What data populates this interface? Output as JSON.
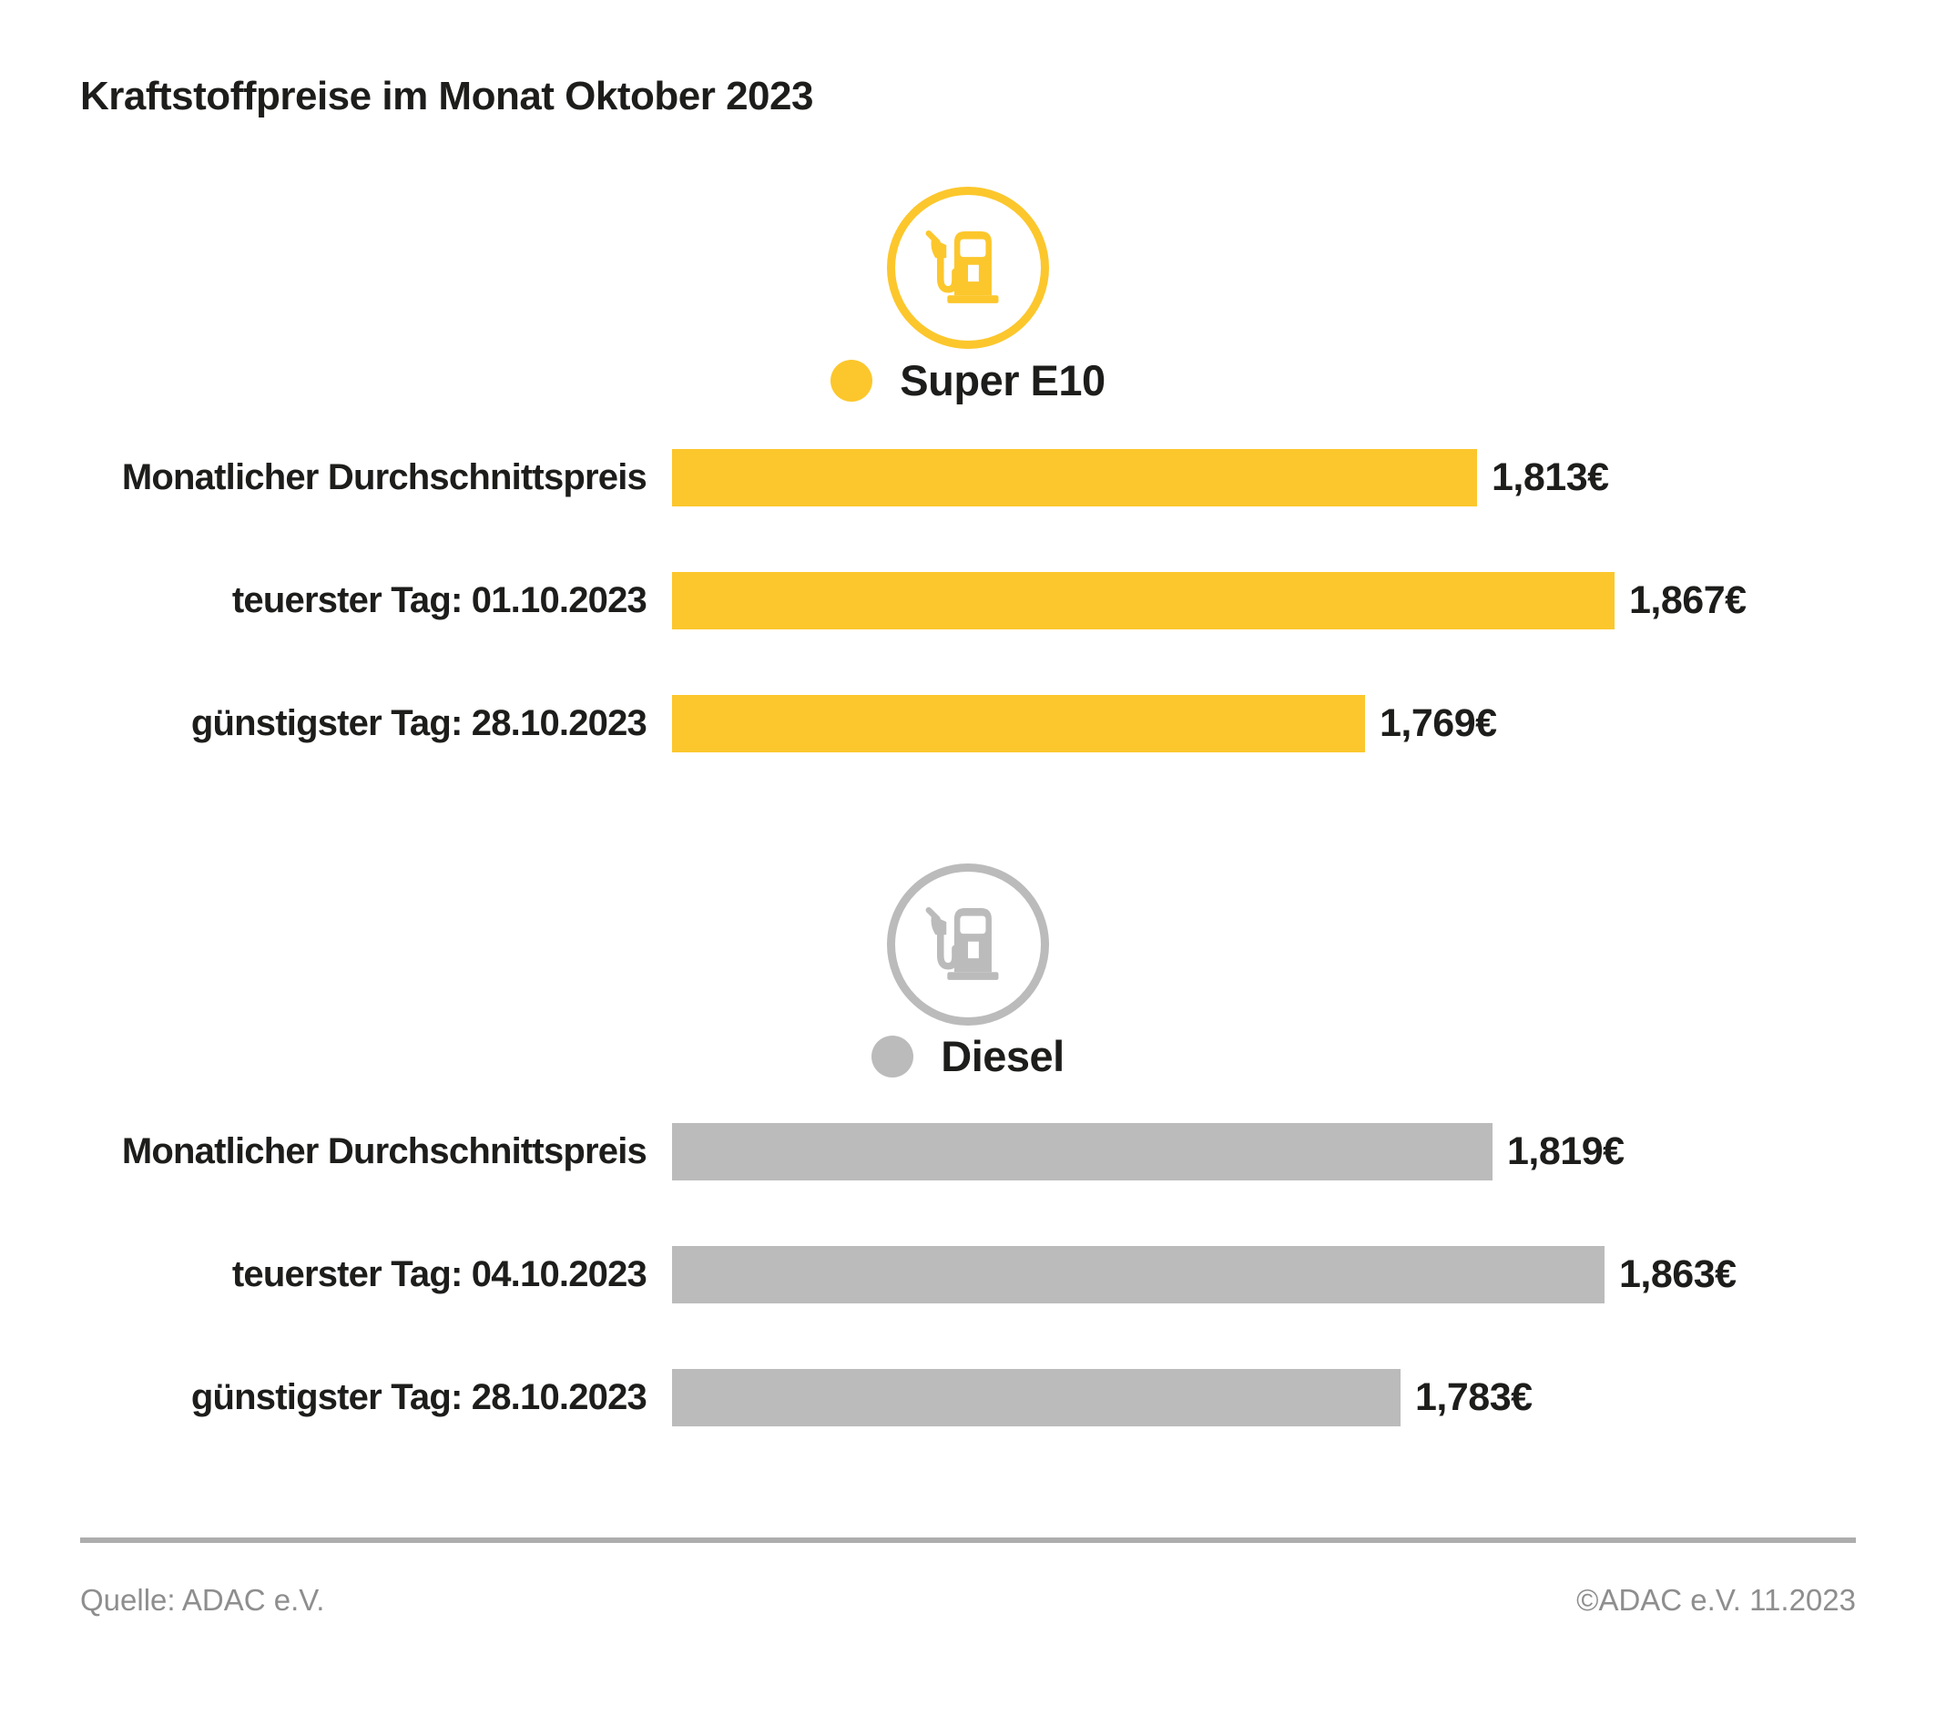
{
  "title": "Kraftstoffpreise im Monat Oktober 2023",
  "colors": {
    "super_e10": "#FCC72C",
    "diesel": "#BBBBBB",
    "text": "#1D1D1B",
    "footer_text": "#8E8E8E",
    "divider": "#ADADAD",
    "background": "#FFFFFF"
  },
  "chart_data": {
    "type": "bar",
    "orientation": "horizontal",
    "title": "Kraftstoffpreise im Monat Oktober 2023",
    "unit": "EUR",
    "grid": false,
    "legend_position": "above-each-series",
    "value_range_displayed": [
      1.769,
      1.867
    ],
    "axis_note": "no visible axis; bar lengths linearly scaled with non-zero baseline, values printed at bar ends",
    "series": [
      {
        "name": "Super E10",
        "color": "#FCC72C",
        "icon": "fuel-pump-icon",
        "rows": [
          {
            "category": "Monatlicher Durchschnittspreis",
            "value": 1.813,
            "display": "1,813€"
          },
          {
            "category": "teuerster Tag: 01.10.2023",
            "value": 1.867,
            "display": "1,867€"
          },
          {
            "category": "günstigster Tag: 28.10.2023",
            "value": 1.769,
            "display": "1,769€"
          }
        ]
      },
      {
        "name": "Diesel",
        "color": "#BBBBBB",
        "icon": "fuel-pump-icon",
        "rows": [
          {
            "category": "Monatlicher Durchschnittspreis",
            "value": 1.819,
            "display": "1,819€"
          },
          {
            "category": "teuerster Tag: 04.10.2023",
            "value": 1.863,
            "display": "1,863€"
          },
          {
            "category": "günstigster Tag: 28.10.2023",
            "value": 1.783,
            "display": "1,783€"
          }
        ]
      }
    ]
  },
  "footer": {
    "source": "Quelle: ADAC e.V.",
    "copyright": "©ADAC e.V. 11.2023"
  }
}
